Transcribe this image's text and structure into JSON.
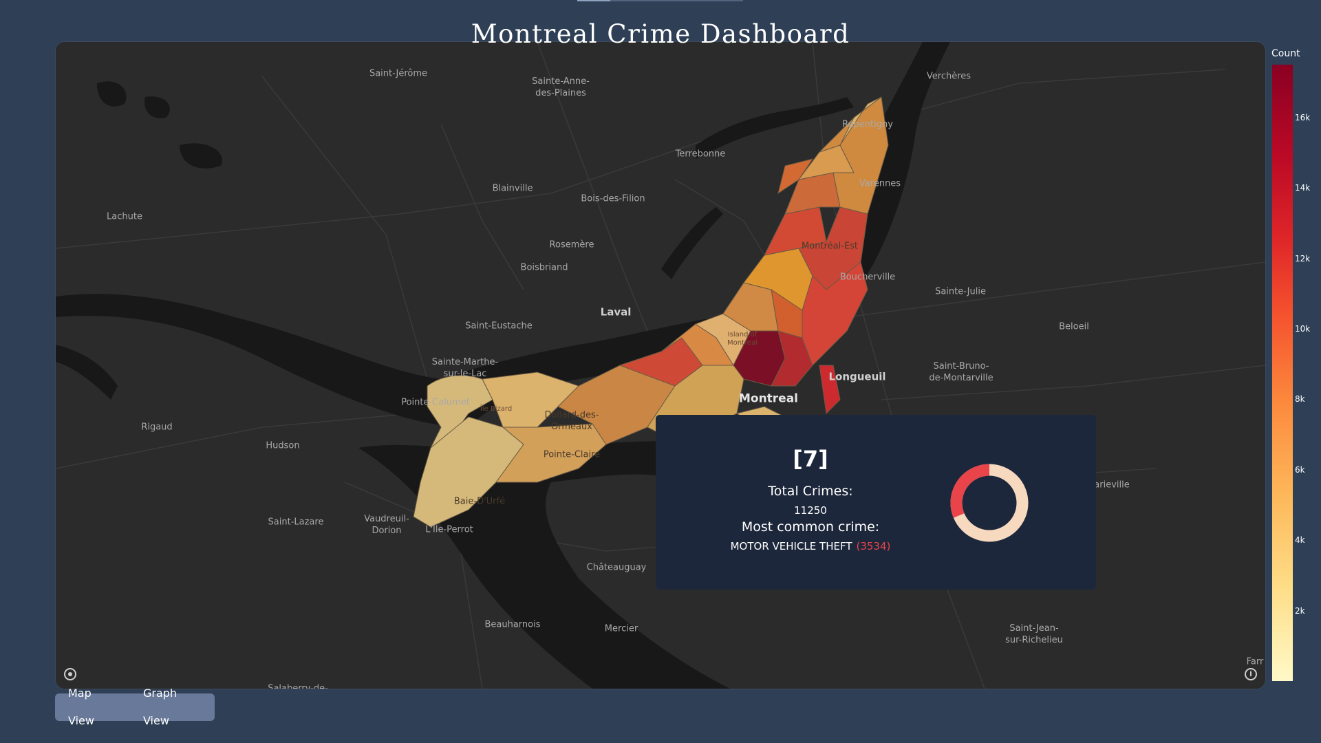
{
  "header": {
    "title": "Montreal Crime Dashboard"
  },
  "map": {
    "city_labels": {
      "saint_jerome": "Saint-Jérôme",
      "sainte_anne": "Sainte-Anne-\ndes-Plaines",
      "vercheres": "Verchères",
      "repentigny": "Repentigny",
      "terrebonne": "Terrebonne",
      "varennes": "Varennes",
      "blainville": "Blainville",
      "bois_des_filion": "Bois-des-Filion",
      "lachute": "Lachute",
      "rosemere": "Rosemère",
      "montreal_est": "Montréal-Est",
      "boisbriand": "Boisbriand",
      "boucherville": "Boucherville",
      "sainte_julie": "Sainte-Julie",
      "laval": "Laval",
      "saint_eustache": "Saint-Eustache",
      "beloeil": "Beloeil",
      "island_of_montreal": "Island of\nMontreal",
      "sainte_marthe": "Sainte-Marthe-\nsur-le-Lac",
      "longueuil": "Longueuil",
      "saint_bruno": "Saint-Bruno-\nde-Montarville",
      "montreal": "Montreal",
      "pointe_calumet": "Pointe-Calumet",
      "ile_bizard": "Île Bizard",
      "dollard": "Dollard-des-\nOrmeaux",
      "rigaud": "Rigaud",
      "hudson": "Hudson",
      "pointe_claire": "Pointe-Claire",
      "marieville": "arieville",
      "baie_durfe": "Baie-D'Urfé",
      "saint_lazare": "Saint-Lazare",
      "vaudreuil": "Vaudreuil-\nDorion",
      "ile_perrot": "L'Île-Perrot",
      "chateauguay": "Châteauguay",
      "beauharnois": "Beauharnois",
      "mercier": "Mercier",
      "saint_jean": "Saint-Jean-\nsur-Richelieu",
      "farnham": "Farr",
      "salaberry": "Salaberry-de-"
    },
    "hover": {
      "district": "[7]",
      "total_label": "Total Crimes:",
      "total_value": "11250",
      "common_label": "Most common crime:",
      "common_crime": "MOTOR VEHICLE THEFT",
      "common_count": "(3534)",
      "donut": {
        "most_common_share": 0.314,
        "colors": {
          "highlight": "#e8444a",
          "rest": "#f7d9bf"
        }
      }
    },
    "colors": {
      "land": "#2b2b2b",
      "water": "#181818",
      "roads": "#3a3a3a"
    }
  },
  "legend": {
    "title": "Count",
    "ticks": [
      "16k",
      "14k",
      "12k",
      "10k",
      "8k",
      "6k",
      "4k",
      "2k"
    ],
    "scale": {
      "min": 0,
      "max": 17500
    },
    "colors": [
      "#fff9c8",
      "#fede88",
      "#fdb85a",
      "#fc8a3d",
      "#f4502d",
      "#de2528",
      "#bb0a26",
      "#8a0022"
    ]
  },
  "view_toggle": {
    "map_label": "Map View",
    "graph_label": "Graph View"
  }
}
